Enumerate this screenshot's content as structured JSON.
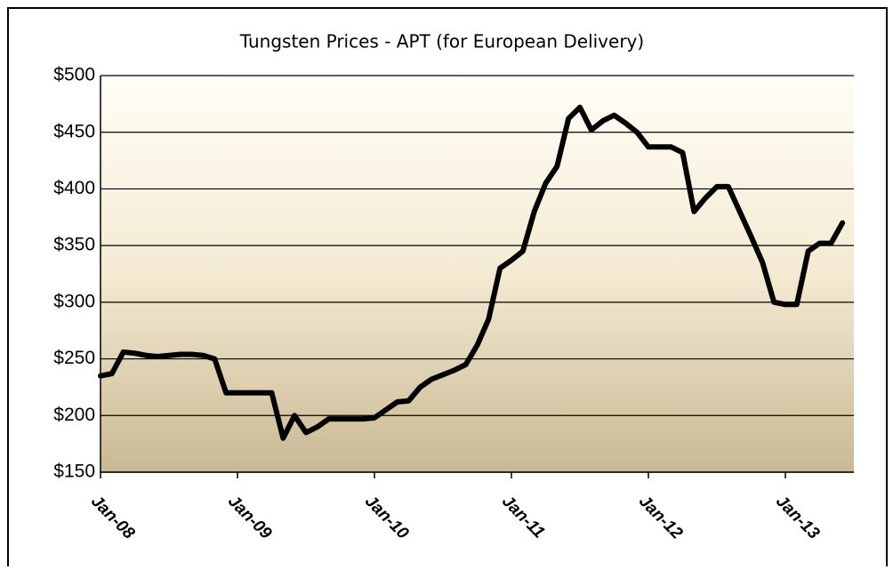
{
  "chart_data": {
    "type": "line",
    "title": "Tungsten Prices - APT (for European Delivery)",
    "x": [
      "2008-01",
      "2008-02",
      "2008-03",
      "2008-04",
      "2008-05",
      "2008-06",
      "2008-07",
      "2008-08",
      "2008-09",
      "2008-10",
      "2008-11",
      "2008-12",
      "2009-01",
      "2009-02",
      "2009-03",
      "2009-04",
      "2009-05",
      "2009-06",
      "2009-07",
      "2009-08",
      "2009-09",
      "2009-10",
      "2009-11",
      "2009-12",
      "2010-01",
      "2010-02",
      "2010-03",
      "2010-04",
      "2010-05",
      "2010-06",
      "2010-07",
      "2010-08",
      "2010-09",
      "2010-10",
      "2010-11",
      "2010-12",
      "2011-01",
      "2011-02",
      "2011-03",
      "2011-04",
      "2011-05",
      "2011-06",
      "2011-07",
      "2011-08",
      "2011-09",
      "2011-10",
      "2011-11",
      "2011-12",
      "2012-01",
      "2012-02",
      "2012-03",
      "2012-04",
      "2012-05",
      "2012-06",
      "2012-07",
      "2012-08",
      "2012-09",
      "2012-10",
      "2012-11",
      "2012-12",
      "2013-01",
      "2013-02",
      "2013-03",
      "2013-04",
      "2013-05",
      "2013-06"
    ],
    "series": [
      {
        "color": "#000000",
        "values": [
          235,
          237,
          256,
          255,
          253,
          252,
          253,
          254,
          254,
          253,
          250,
          220,
          220,
          220,
          220,
          220,
          180,
          200,
          185,
          190,
          197,
          197,
          197,
          197,
          198,
          205,
          212,
          213,
          225,
          232,
          236,
          240,
          245,
          262,
          285,
          330,
          337,
          345,
          380,
          405,
          420,
          462,
          472,
          452,
          460,
          465,
          458,
          450,
          437,
          437,
          437,
          432,
          380,
          392,
          402,
          402,
          380,
          358,
          335,
          300,
          298,
          298,
          345,
          352,
          352,
          370
        ]
      }
    ],
    "ylim": [
      150,
      500
    ],
    "yticks": [
      {
        "value": 150,
        "label": "$150"
      },
      {
        "value": 200,
        "label": "$200"
      },
      {
        "value": 250,
        "label": "$250"
      },
      {
        "value": 300,
        "label": "$300"
      },
      {
        "value": 350,
        "label": "$350"
      },
      {
        "value": 400,
        "label": "$400"
      },
      {
        "value": 450,
        "label": "$450"
      },
      {
        "value": 500,
        "label": "$500"
      }
    ],
    "xlim": [
      "2008-01",
      "2013-06"
    ],
    "xticks": [
      {
        "value": "2008-01",
        "label": "Jan-08"
      },
      {
        "value": "2009-01",
        "label": "Jan-09"
      },
      {
        "value": "2010-01",
        "label": "Jan-10"
      },
      {
        "value": "2011-01",
        "label": "Jan-11"
      },
      {
        "value": "2012-01",
        "label": "Jan-12"
      },
      {
        "value": "2013-01",
        "label": "Jan-13"
      }
    ],
    "grid": true
  }
}
